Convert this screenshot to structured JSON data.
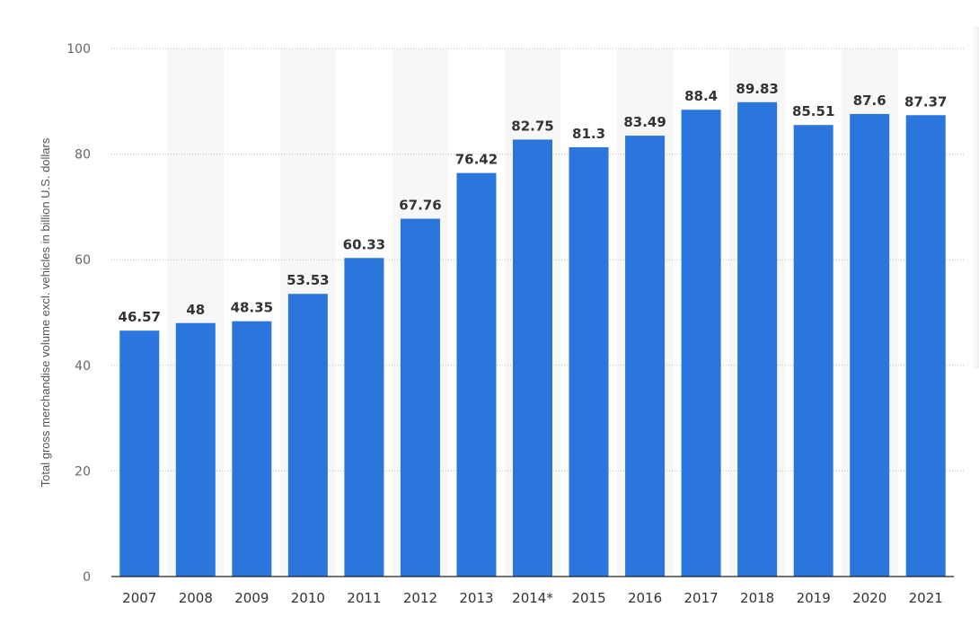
{
  "chart_data": {
    "type": "bar",
    "categories": [
      "2007",
      "2008",
      "2009",
      "2010",
      "2011",
      "2012",
      "2013",
      "2014*",
      "2015",
      "2016",
      "2017",
      "2018",
      "2019",
      "2020",
      "2021"
    ],
    "values": [
      46.57,
      48,
      48.35,
      53.53,
      60.33,
      67.76,
      76.42,
      82.75,
      81.3,
      83.49,
      88.4,
      89.83,
      85.51,
      87.6,
      87.37
    ],
    "value_labels": [
      "46.57",
      "48",
      "48.35",
      "53.53",
      "60.33",
      "67.76",
      "76.42",
      "82.75",
      "81.3",
      "83.49",
      "88.4",
      "89.83",
      "85.51",
      "87.6",
      "87.37"
    ],
    "title": "",
    "xlabel": "",
    "ylabel": "Total gross merchandise volume excl. vehicles in billion U.S. dollars",
    "ylim": [
      0,
      100
    ],
    "yticks": [
      0,
      20,
      40,
      60,
      80,
      100
    ],
    "ytick_labels": [
      "0",
      "20",
      "40",
      "60",
      "80",
      "100"
    ],
    "grid": true,
    "legend": "none",
    "colors": {
      "bar": "#2a76dd",
      "band": "#f7f7f7",
      "grid": "#bdbdbd",
      "axis": "#222222"
    }
  }
}
